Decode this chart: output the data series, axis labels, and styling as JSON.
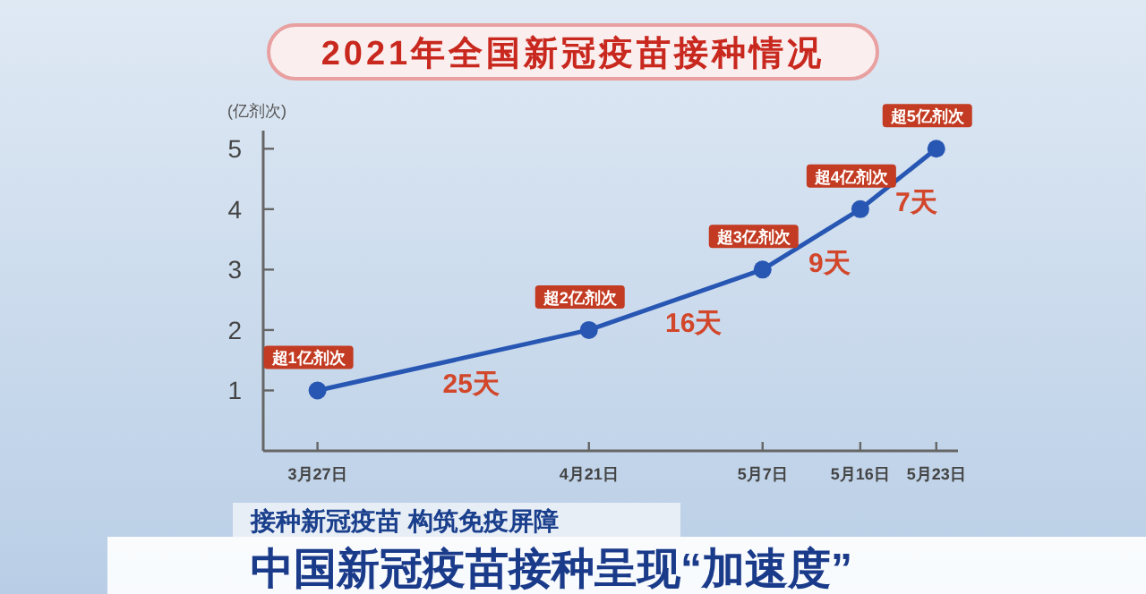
{
  "chart_data": {
    "type": "line",
    "title": "2021年全国新冠疫苗接种情况",
    "ylabel": "(亿剂次)",
    "x": [
      "--03-27",
      "--04-21",
      "--05-07",
      "--05-16",
      "--05-23"
    ],
    "series": [
      {
        "color": "#2756b3",
        "values": [
          1,
          2,
          3,
          4,
          5
        ],
        "value_labels": [
          "超1亿剂次",
          "超2亿剂次",
          "超3亿剂次",
          "超4亿剂次",
          "超5亿剂次"
        ]
      }
    ],
    "xlim": [
      "--03-22",
      "--05-25"
    ],
    "ylim": [
      0,
      5.3
    ],
    "xticks": [
      {
        "value": "--03-27",
        "label": "3月27日"
      },
      {
        "value": "--04-21",
        "label": "4月21日"
      },
      {
        "value": "--05-07",
        "label": "5月7日"
      },
      {
        "value": "--05-16",
        "label": "5月16日"
      },
      {
        "value": "--05-23",
        "label": "5月23日"
      }
    ],
    "yticks": [
      1,
      2,
      3,
      4,
      5
    ],
    "marker": "circle",
    "line_style": "solid",
    "annotations": [
      "25天",
      "16天",
      "9天",
      "7天",
      "接种新冠疫苗 构筑免疫屏障",
      "中国新冠疫苗接种呈现“加速度”"
    ]
  }
}
